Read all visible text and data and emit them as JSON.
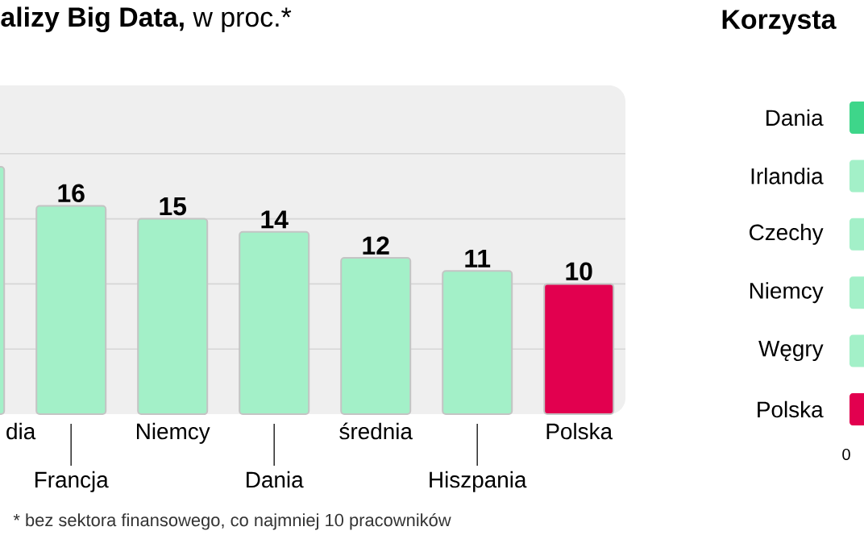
{
  "chart_data": [
    {
      "type": "bar",
      "title": "**alizy Big Data,** w proc.*",
      "categories": [
        "dia",
        "Francja",
        "Niemcy",
        "Dania",
        "średnia",
        "Hiszpania",
        "Polska"
      ],
      "values": [
        19,
        16,
        15,
        14,
        12,
        11,
        10
      ],
      "value_labels": [
        null,
        "16",
        "15",
        "14",
        "12",
        "11",
        "10"
      ],
      "colors": [
        "#a3f0c8",
        "#a3f0c8",
        "#a3f0c8",
        "#a3f0c8",
        "#a3f0c8",
        "#a3f0c8",
        "#e2004f"
      ],
      "ylim": [
        0,
        25
      ],
      "yticks": [
        {
          "value": 5,
          "label": null
        },
        {
          "value": 10,
          "label": null
        },
        {
          "value": 15,
          "label": null
        },
        {
          "value": 20,
          "label": null
        }
      ],
      "grid": "y",
      "tick_labels": "x",
      "annotations": [
        "* bez sektora finansowego, co najmniej 10 pracowników"
      ]
    },
    {
      "type": "other",
      "title": "Korzysta",
      "categories": [
        "Dania",
        "Irlandia",
        "Czechy",
        "Niemcy",
        "Węgry",
        "Polska"
      ],
      "colors": [
        "#3ed68a",
        "#a3f0c8",
        "#a3f0c8",
        "#a3f0c8",
        "#a3f0c8",
        "#e2004f"
      ],
      "annotations": [
        "0"
      ]
    }
  ]
}
